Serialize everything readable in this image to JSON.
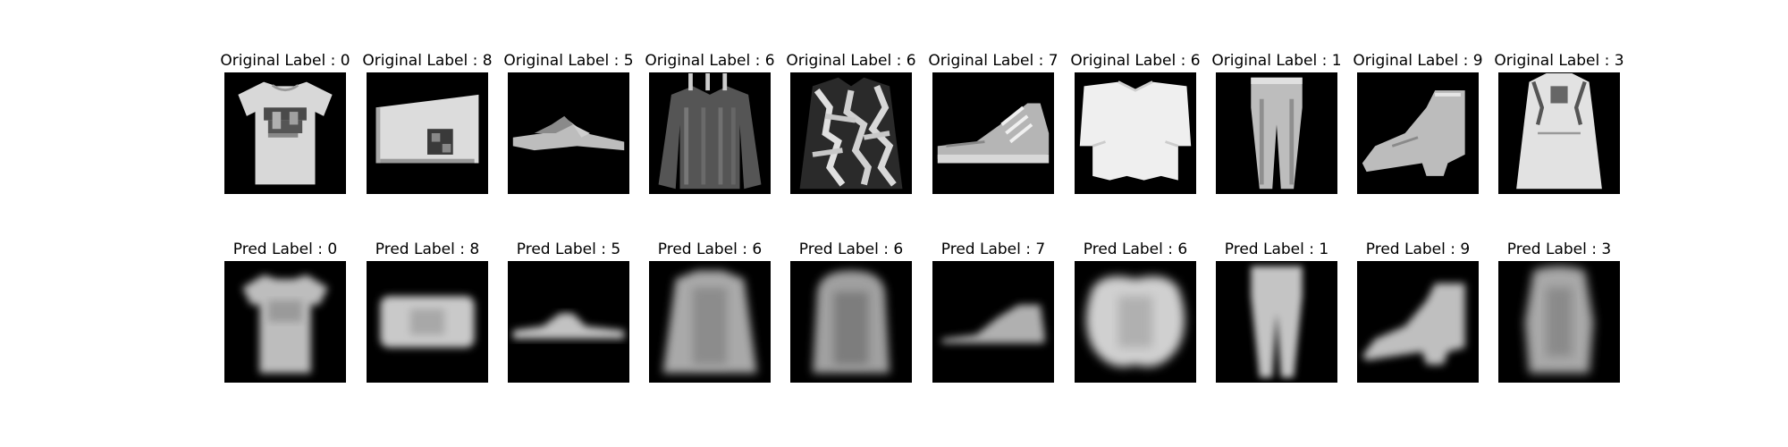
{
  "rows": [
    {
      "name": "original",
      "panels": [
        {
          "title": "Original Label : 0",
          "item": "tshirt-icon"
        },
        {
          "title": "Original Label : 8",
          "item": "bag-icon"
        },
        {
          "title": "Original Label : 5",
          "item": "sandal-icon"
        },
        {
          "title": "Original Label : 6",
          "item": "shirt-icon"
        },
        {
          "title": "Original Label : 6",
          "item": "shirt-icon"
        },
        {
          "title": "Original Label : 7",
          "item": "sneaker-icon"
        },
        {
          "title": "Original Label : 6",
          "item": "shirt-icon"
        },
        {
          "title": "Original Label : 1",
          "item": "trouser-icon"
        },
        {
          "title": "Original Label : 9",
          "item": "ankle-boot-icon"
        },
        {
          "title": "Original Label : 3",
          "item": "dress-icon"
        }
      ]
    },
    {
      "name": "predicted",
      "panels": [
        {
          "title": "Pred Label : 0",
          "item": "tshirt-icon"
        },
        {
          "title": "Pred Label : 8",
          "item": "bag-icon"
        },
        {
          "title": "Pred Label : 5",
          "item": "sandal-icon"
        },
        {
          "title": "Pred Label : 6",
          "item": "shirt-icon"
        },
        {
          "title": "Pred Label : 6",
          "item": "shirt-icon"
        },
        {
          "title": "Pred Label : 7",
          "item": "sneaker-icon"
        },
        {
          "title": "Pred Label : 6",
          "item": "shirt-icon"
        },
        {
          "title": "Pred Label : 1",
          "item": "trouser-icon"
        },
        {
          "title": "Pred Label : 9",
          "item": "ankle-boot-icon"
        },
        {
          "title": "Pred Label : 3",
          "item": "dress-icon"
        }
      ]
    }
  ]
}
